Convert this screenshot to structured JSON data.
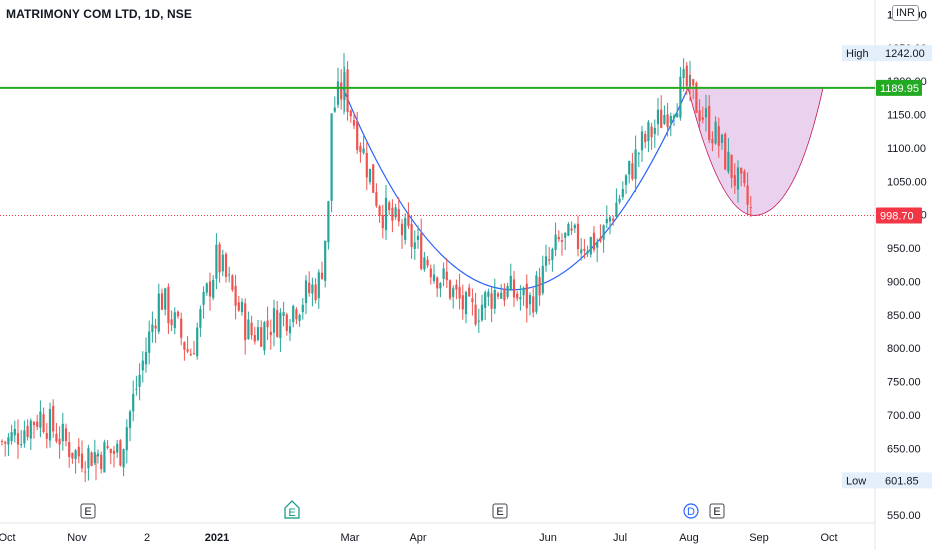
{
  "header": {
    "title": "MATRIMONY COM LTD, 1D, NSE",
    "currency_badge": "INR",
    "top_tick_partial": "1300.00"
  },
  "colors": {
    "up": "#26a69a",
    "down": "#ef5350",
    "resistance_line": "#22ab22",
    "cup_curve": "#2962ff",
    "handle_fill": "#e1bee7",
    "handle_stroke": "#c2185b",
    "last_price": "#f23645",
    "badge_bg": "#e3f0fb"
  },
  "chart_data": {
    "type": "candlestick",
    "title": "MATRIMONY COM LTD, 1D, NSE",
    "xlabel": "",
    "ylabel": "",
    "ylim": [
      535,
      1325
    ],
    "y_ticks": [
      550,
      600,
      650,
      700,
      750,
      800,
      850,
      900,
      950,
      1000,
      1050,
      1100,
      1150,
      1200,
      1250,
      1300
    ],
    "x_ticks": [
      "Oct",
      "Nov",
      "2",
      "2021",
      "Mar",
      "Apr",
      "Jun",
      "Jul",
      "Aug",
      "Sep",
      "Oct"
    ],
    "high": {
      "label": "High",
      "value": "1242.00"
    },
    "low": {
      "label": "Low",
      "value": "601.85"
    },
    "resistance": {
      "value": "1189.95"
    },
    "last_price": {
      "value": "998.70"
    },
    "event_markers": [
      {
        "label": "E",
        "x_label": "Nov",
        "kind": "earnings"
      },
      {
        "label": "E",
        "x_label": "2021",
        "kind": "earnings-upcoming"
      },
      {
        "label": "E",
        "x_label": "May",
        "kind": "earnings"
      },
      {
        "label": "D",
        "x_label": "Aug",
        "kind": "dividend"
      },
      {
        "label": "E",
        "x_label": "Aug",
        "kind": "earnings"
      }
    ],
    "price_path": [
      {
        "t": "Oct",
        "close": 660
      },
      {
        "t": "Oct-mid",
        "close": 700
      },
      {
        "t": "Nov",
        "close": 640
      },
      {
        "t": "Nov-end",
        "close": 645
      },
      {
        "t": "Dec",
        "close": 880
      },
      {
        "t": "Dec-end",
        "close": 790
      },
      {
        "t": "2021",
        "close": 935
      },
      {
        "t": "Jan-mid",
        "close": 820
      },
      {
        "t": "Feb",
        "close": 850
      },
      {
        "t": "Feb-mid",
        "close": 900
      },
      {
        "t": "Feb-end",
        "close": 1195
      },
      {
        "t": "Mar-mid",
        "close": 1010
      },
      {
        "t": "Apr",
        "close": 950
      },
      {
        "t": "Apr-end",
        "close": 850
      },
      {
        "t": "May",
        "close": 890
      },
      {
        "t": "May-end",
        "close": 870
      },
      {
        "t": "Jun",
        "close": 960
      },
      {
        "t": "Jun-end",
        "close": 960
      },
      {
        "t": "Jul",
        "close": 1100
      },
      {
        "t": "Jul-end",
        "close": 1195
      },
      {
        "t": "Aug-mid",
        "close": 1120
      },
      {
        "t": "Aug-end",
        "close": 1000
      }
    ]
  }
}
